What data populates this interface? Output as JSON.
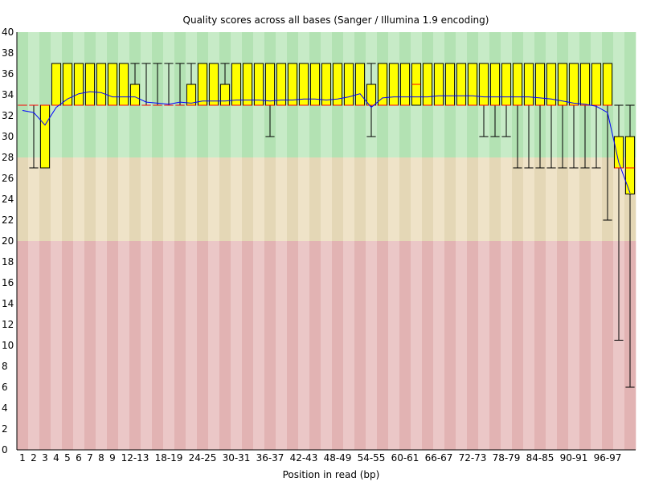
{
  "chart_data": {
    "type": "box",
    "title": "Quality scores across all bases (Sanger / Illumina 1.9 encoding)",
    "xlabel": "Position in read (bp)",
    "ylabel": "",
    "ylim": [
      0,
      40
    ],
    "yticks": [
      0,
      2,
      4,
      6,
      8,
      10,
      12,
      14,
      16,
      18,
      20,
      22,
      24,
      26,
      28,
      30,
      32,
      34,
      36,
      38,
      40
    ],
    "bands": [
      {
        "from": 28,
        "to": 40,
        "colors": [
          "#b3e2b3",
          "#c7ebc7"
        ]
      },
      {
        "from": 20,
        "to": 28,
        "colors": [
          "#e4d7b6",
          "#efe3c8"
        ]
      },
      {
        "from": 0,
        "to": 20,
        "colors": [
          "#e2b3b3",
          "#ebc7c7"
        ]
      }
    ],
    "categories": [
      "1",
      "2",
      "3",
      "4",
      "5",
      "6",
      "7",
      "8",
      "9",
      "10-11",
      "12-13",
      "14-15",
      "16-17",
      "18-19",
      "20-21",
      "22-23",
      "24-25",
      "26-27",
      "28-29",
      "30-31",
      "32-33",
      "34-35",
      "36-37",
      "38-39",
      "40-41",
      "42-43",
      "44-45",
      "46-47",
      "48-49",
      "50-51",
      "52-53",
      "54-55",
      "56-57",
      "58-59",
      "60-61",
      "62-63",
      "64-65",
      "66-67",
      "68-69",
      "70-71",
      "72-73",
      "74-75",
      "76-77",
      "78-79",
      "80-81",
      "82-83",
      "84-85",
      "86-87",
      "88-89",
      "90-91",
      "92-93",
      "94-95",
      "96-97",
      "98-99",
      "100-101"
    ],
    "xtick_labels": [
      "1",
      "2",
      "3",
      "4",
      "5",
      "6",
      "7",
      "8",
      "9",
      "12-13",
      "18-19",
      "24-25",
      "30-31",
      "36-37",
      "42-43",
      "48-49",
      "54-55",
      "60-61",
      "66-67",
      "72-73",
      "78-79",
      "84-85",
      "90-91",
      "96-97"
    ],
    "series": [
      {
        "type": "box",
        "color": "#ffff00",
        "q1": [
          33,
          33,
          27,
          33,
          33,
          33,
          33,
          33,
          33,
          33,
          33,
          33,
          33,
          33,
          33,
          33,
          33,
          33,
          33,
          33,
          33,
          33,
          33,
          33,
          33,
          33,
          33,
          33,
          33,
          33,
          33,
          33,
          33,
          33,
          33,
          33,
          33,
          33,
          33,
          33,
          33,
          33,
          33,
          33,
          33,
          33,
          33,
          33,
          33,
          33,
          33,
          33,
          33,
          27,
          24.5
        ],
        "q3": [
          33,
          33,
          33,
          37,
          37,
          37,
          37,
          37,
          37,
          37,
          35,
          33,
          33,
          33,
          33,
          35,
          37,
          37,
          35,
          37,
          37,
          37,
          37,
          37,
          37,
          37,
          37,
          37,
          37,
          37,
          37,
          35,
          37,
          37,
          37,
          37,
          37,
          37,
          37,
          37,
          37,
          37,
          37,
          37,
          37,
          37,
          37,
          37,
          37,
          37,
          37,
          37,
          37,
          30,
          30
        ],
        "median": [
          33,
          33,
          33,
          33,
          33,
          33,
          33,
          33,
          33,
          33,
          33,
          33,
          33,
          33,
          33,
          33,
          33,
          33,
          33,
          33,
          33,
          33,
          33,
          33,
          33,
          33,
          33,
          33,
          33,
          33,
          33,
          33,
          33,
          33,
          33,
          35,
          33,
          33,
          33,
          33,
          33,
          33,
          33,
          33,
          33,
          33,
          33,
          33,
          33,
          33,
          33,
          33,
          33,
          27,
          27
        ],
        "low": [
          33,
          27,
          27,
          33,
          33,
          33,
          33,
          33,
          33,
          33,
          33,
          33,
          33,
          33,
          33,
          33,
          33,
          33,
          33,
          33,
          33,
          33,
          30,
          33,
          33,
          33,
          33,
          33,
          33,
          33,
          33,
          30,
          33,
          33,
          33,
          33,
          33,
          33,
          33,
          33,
          33,
          30,
          30,
          30,
          27,
          27,
          27,
          27,
          27,
          27,
          27,
          27,
          22,
          10.5,
          6
        ],
        "high": [
          33,
          33,
          33,
          37,
          37,
          37,
          37,
          37,
          37,
          37,
          37,
          37,
          37,
          37,
          37,
          37,
          37,
          37,
          37,
          37,
          37,
          37,
          37,
          37,
          37,
          37,
          37,
          37,
          37,
          37,
          37,
          37,
          37,
          37,
          37,
          37,
          37,
          37,
          37,
          37,
          37,
          37,
          37,
          37,
          37,
          37,
          37,
          37,
          37,
          37,
          37,
          37,
          37,
          33,
          33
        ]
      },
      {
        "type": "line",
        "name": "Mean",
        "color": "#0000ff",
        "values": [
          32.5,
          32.3,
          31.1,
          32.8,
          33.6,
          34.1,
          34.3,
          34.2,
          33.8,
          33.8,
          33.8,
          33.3,
          33.2,
          33.1,
          33.3,
          33.2,
          33.4,
          33.4,
          33.4,
          33.5,
          33.5,
          33.5,
          33.4,
          33.5,
          33.5,
          33.6,
          33.6,
          33.5,
          33.6,
          33.8,
          34.1,
          32.8,
          33.7,
          33.8,
          33.8,
          33.8,
          33.8,
          33.9,
          33.9,
          33.9,
          33.9,
          33.8,
          33.8,
          33.8,
          33.8,
          33.8,
          33.7,
          33.6,
          33.4,
          33.2,
          33.1,
          32.9,
          32.3,
          27.5,
          24.6
        ]
      }
    ]
  }
}
